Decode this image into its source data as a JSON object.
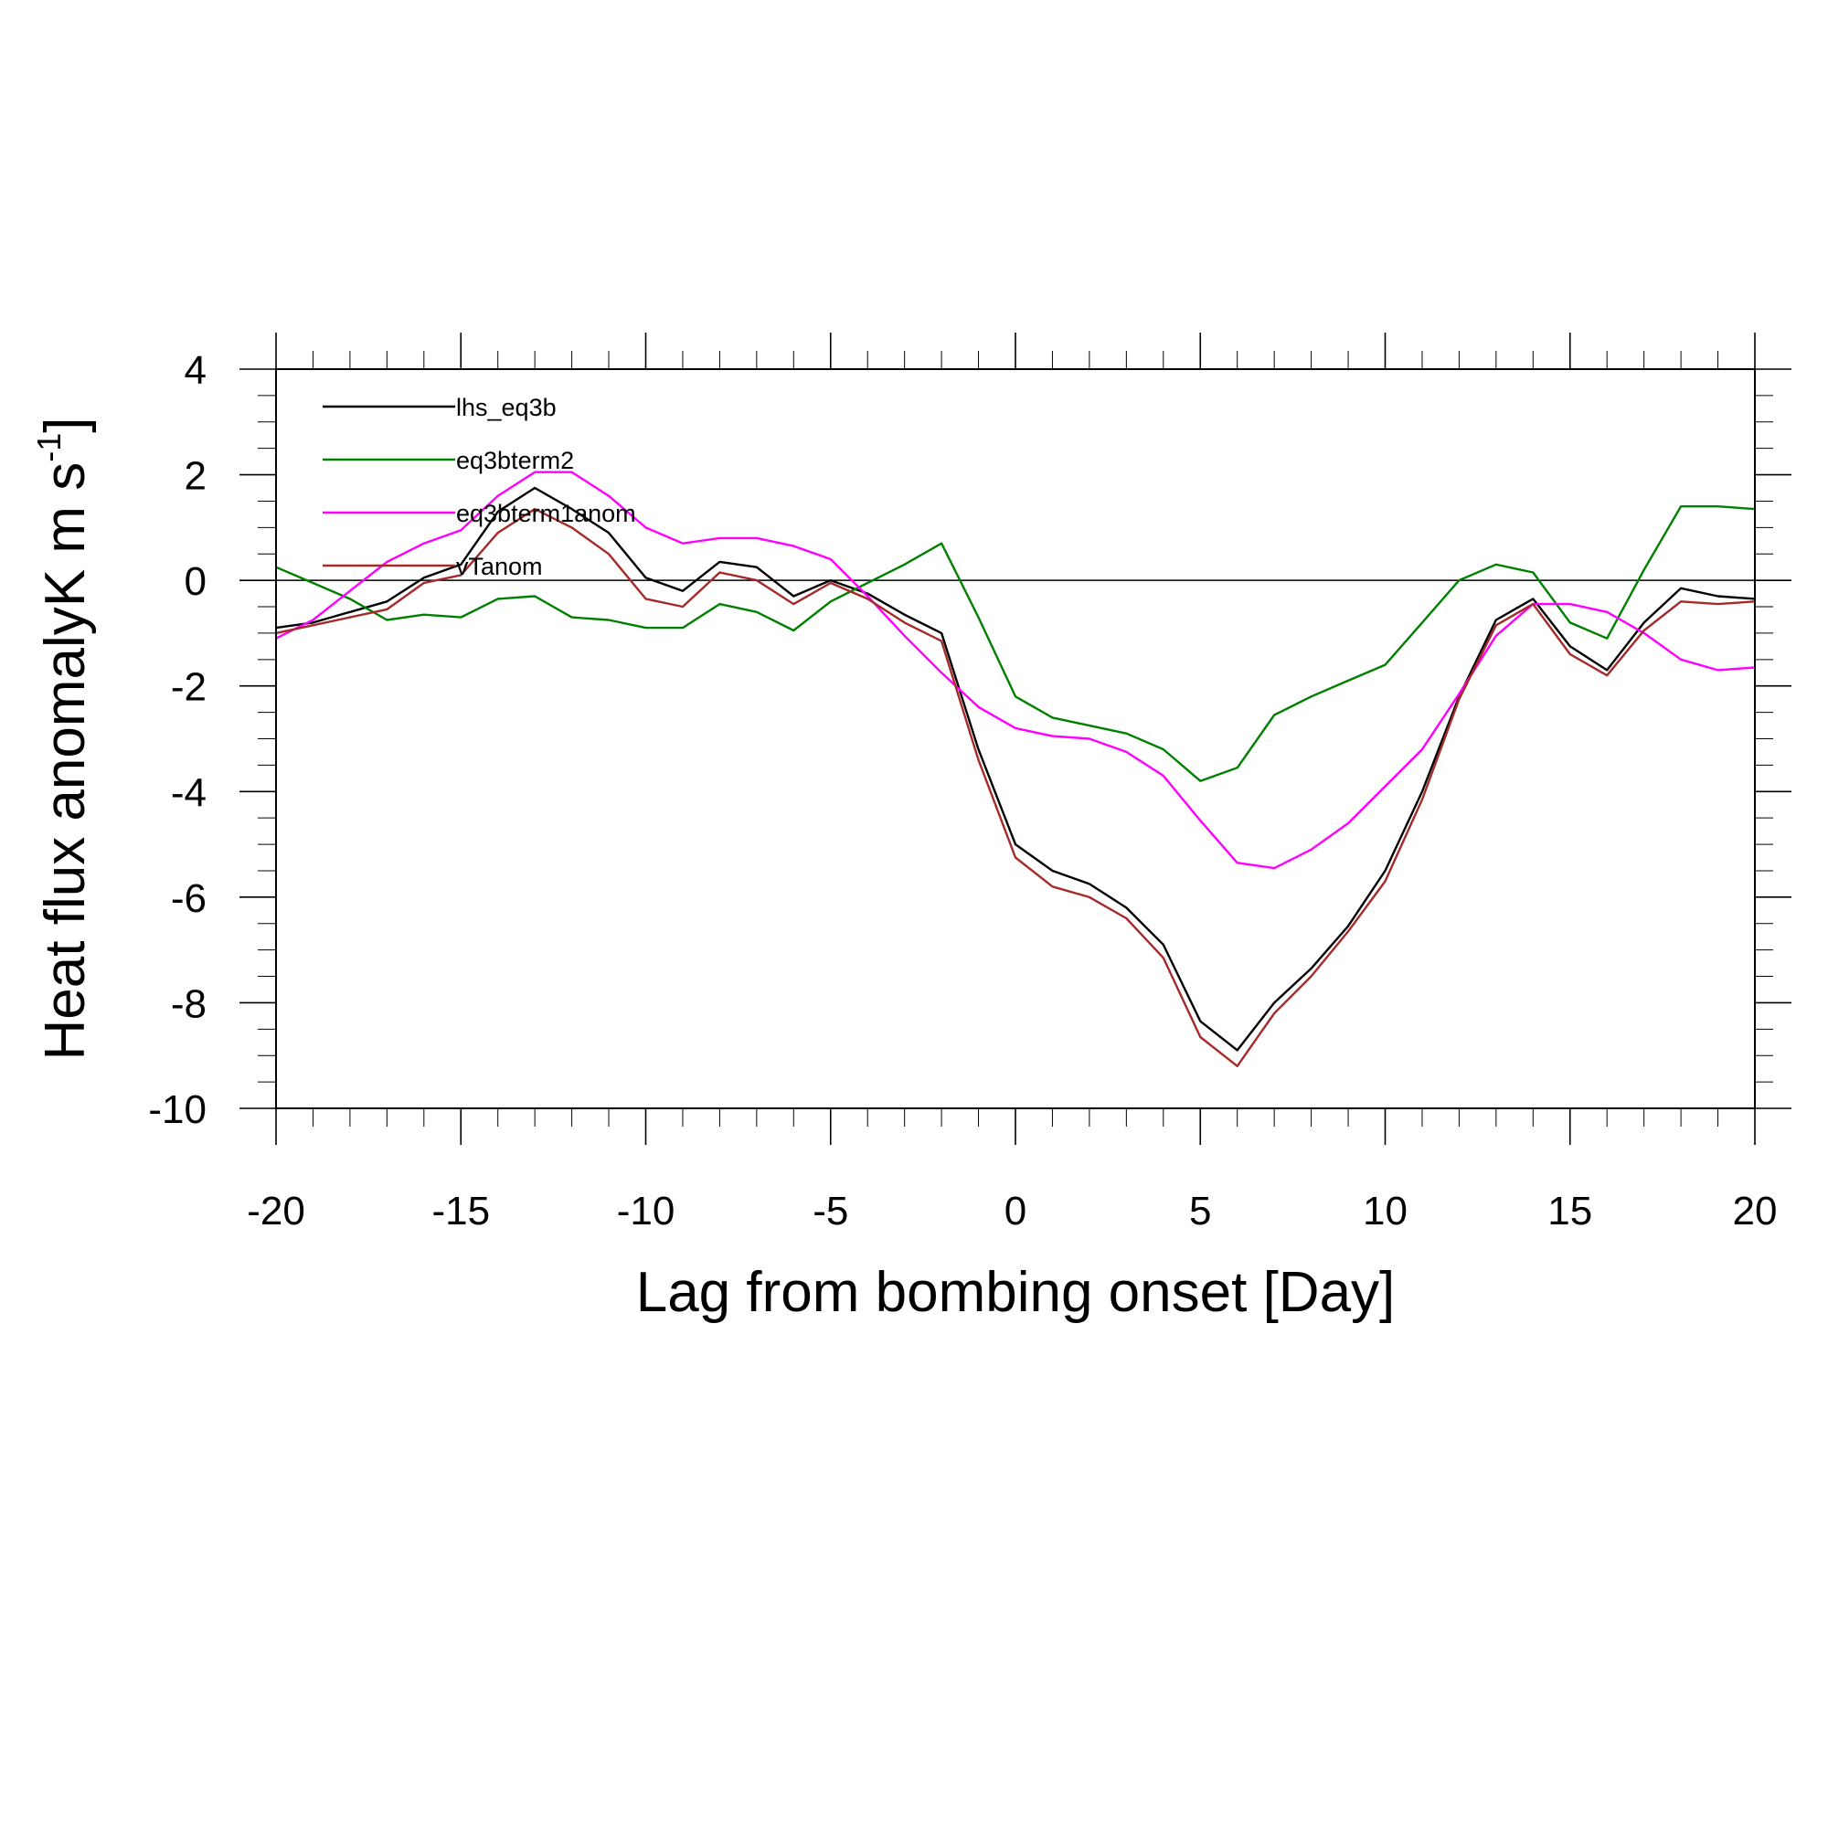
{
  "chart_data": {
    "type": "line",
    "xlabel": "Lag from bombing onset [Day]",
    "ylabel_main": "Heat flux anomalyK m s",
    "ylabel_sup": "-1",
    "ylabel_close": "]",
    "xlim": [
      -20,
      20
    ],
    "ylim": [
      -10,
      4
    ],
    "xticks": [
      -20,
      -15,
      -10,
      -5,
      0,
      5,
      10,
      15,
      20
    ],
    "yticks": [
      -10,
      -8,
      -6,
      -4,
      -2,
      0,
      2,
      4
    ],
    "reference_line_y": 0,
    "legend_position": "top-left inside",
    "x": [
      -20,
      -19,
      -18,
      -17,
      -16,
      -15,
      -14,
      -13,
      -12,
      -11,
      -10,
      -9,
      -8,
      -7,
      -6,
      -5,
      -4,
      -3,
      -2,
      -1,
      0,
      1,
      2,
      3,
      4,
      5,
      6,
      7,
      8,
      9,
      10,
      11,
      12,
      13,
      14,
      15,
      16,
      17,
      18,
      19,
      20
    ],
    "series": [
      {
        "name": "lhs_eq3b",
        "color": "#000000",
        "values": [
          -0.9,
          -0.8,
          -0.6,
          -0.4,
          0.05,
          0.3,
          1.3,
          1.75,
          1.35,
          0.9,
          0.05,
          -0.2,
          0.35,
          0.25,
          -0.3,
          0.0,
          -0.25,
          -0.65,
          -1.0,
          -3.2,
          -5.0,
          -5.5,
          -5.75,
          -6.2,
          -6.9,
          -8.35,
          -8.9,
          -8.0,
          -7.35,
          -6.55,
          -5.5,
          -4.0,
          -2.2,
          -0.75,
          -0.35,
          -1.25,
          -1.7,
          -0.8,
          -0.15,
          -0.3,
          -0.35
        ]
      },
      {
        "name": "eq3bterm2",
        "color": "#008000",
        "values": [
          0.25,
          -0.05,
          -0.35,
          -0.75,
          -0.65,
          -0.7,
          -0.35,
          -0.3,
          -0.7,
          -0.75,
          -0.9,
          -0.9,
          -0.45,
          -0.6,
          -0.95,
          -0.4,
          -0.05,
          0.3,
          0.7,
          -0.7,
          -2.2,
          -2.6,
          -2.75,
          -2.9,
          -3.2,
          -3.8,
          -3.55,
          -2.55,
          -2.2,
          -1.9,
          -1.6,
          -0.8,
          0.0,
          0.3,
          0.15,
          -0.8,
          -1.1,
          0.2,
          1.4,
          1.4,
          1.35
        ]
      },
      {
        "name": "eq3bterm1anom",
        "color": "#ff00ff",
        "values": [
          -1.1,
          -0.75,
          -0.2,
          0.35,
          0.7,
          0.95,
          1.6,
          2.05,
          2.05,
          1.6,
          1.0,
          0.7,
          0.8,
          0.8,
          0.65,
          0.4,
          -0.3,
          -1.05,
          -1.75,
          -2.4,
          -2.8,
          -2.95,
          -3.0,
          -3.25,
          -3.7,
          -4.55,
          -5.35,
          -5.45,
          -5.1,
          -4.6,
          -3.9,
          -3.2,
          -2.15,
          -1.05,
          -0.45,
          -0.45,
          -0.6,
          -1.0,
          -1.5,
          -1.7,
          -1.65
        ]
      },
      {
        "name": "vTanom",
        "color": "#a52a2a",
        "values": [
          -1.0,
          -0.85,
          -0.7,
          -0.55,
          -0.05,
          0.1,
          0.9,
          1.35,
          1.0,
          0.5,
          -0.35,
          -0.5,
          0.15,
          0.0,
          -0.45,
          -0.05,
          -0.35,
          -0.8,
          -1.15,
          -3.4,
          -5.25,
          -5.8,
          -6.0,
          -6.4,
          -7.15,
          -8.65,
          -9.2,
          -8.2,
          -7.5,
          -6.65,
          -5.7,
          -4.15,
          -2.25,
          -0.85,
          -0.45,
          -1.4,
          -1.8,
          -0.95,
          -0.4,
          -0.45,
          -0.4
        ]
      }
    ]
  }
}
